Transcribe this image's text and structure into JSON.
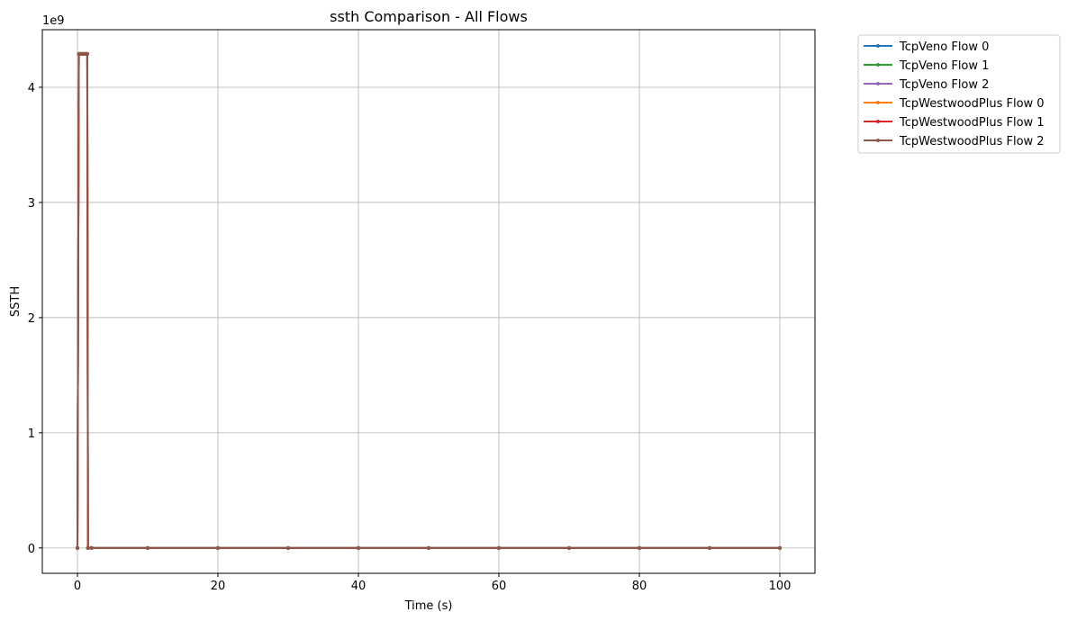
{
  "chart_data": {
    "type": "line",
    "title": "ssth Comparison - All Flows",
    "xlabel": "Time (s)",
    "ylabel": "SSTH",
    "y_scale_label": "1e9",
    "xlim": [
      -5,
      105
    ],
    "ylim": [
      -0.22,
      4.5
    ],
    "x_ticks": [
      0,
      20,
      40,
      60,
      80,
      100
    ],
    "x_tick_labels": [
      "0",
      "20",
      "40",
      "60",
      "80",
      "100"
    ],
    "y_ticks": [
      0,
      1,
      2,
      3,
      4
    ],
    "y_tick_labels": [
      "0",
      "1",
      "2",
      "3",
      "4"
    ],
    "grid": true,
    "legend_position": "outside-right",
    "series": [
      {
        "name": "TcpVeno Flow 0",
        "color": "#1f77b4",
        "x": [
          0,
          0.2,
          0.4,
          0.6,
          0.8,
          1.0,
          1.2,
          1.4,
          1.5,
          2,
          10,
          20,
          30,
          40,
          50,
          60,
          70,
          80,
          90,
          100
        ],
        "y": [
          0,
          4.29,
          4.29,
          4.29,
          4.29,
          4.29,
          4.29,
          4.29,
          0,
          0,
          0,
          0,
          0,
          0,
          0,
          0,
          0,
          0,
          0,
          0
        ]
      },
      {
        "name": "TcpVeno Flow 1",
        "color": "#2ca02c",
        "x": [
          0,
          0.2,
          0.4,
          0.6,
          0.8,
          1.0,
          1.2,
          1.4,
          1.5,
          2,
          10,
          20,
          30,
          40,
          50,
          60,
          70,
          80,
          90,
          100
        ],
        "y": [
          0,
          4.29,
          4.29,
          4.29,
          4.29,
          4.29,
          4.29,
          4.29,
          0,
          0,
          0,
          0,
          0,
          0,
          0,
          0,
          0,
          0,
          0,
          0
        ]
      },
      {
        "name": "TcpVeno Flow 2",
        "color": "#9467bd",
        "x": [
          0,
          0.2,
          0.4,
          0.6,
          0.8,
          1.0,
          1.2,
          1.4,
          1.5,
          2,
          10,
          20,
          30,
          40,
          50,
          60,
          70,
          80,
          90,
          100
        ],
        "y": [
          0,
          4.29,
          4.29,
          4.29,
          4.29,
          4.29,
          4.29,
          4.29,
          0,
          0,
          0,
          0,
          0,
          0,
          0,
          0,
          0,
          0,
          0,
          0
        ]
      },
      {
        "name": "TcpWestwoodPlus Flow 0",
        "color": "#ff7f0e",
        "x": [
          0,
          0.2,
          0.4,
          0.6,
          0.8,
          1.0,
          1.2,
          1.4,
          1.5,
          2,
          10,
          20,
          30,
          40,
          50,
          60,
          70,
          80,
          90,
          100
        ],
        "y": [
          0,
          4.29,
          4.29,
          4.29,
          4.29,
          4.29,
          4.29,
          4.29,
          0,
          0,
          0,
          0,
          0,
          0,
          0,
          0,
          0,
          0,
          0,
          0
        ]
      },
      {
        "name": "TcpWestwoodPlus Flow 1",
        "color": "#d62728",
        "x": [
          0,
          0.2,
          0.4,
          0.6,
          0.8,
          1.0,
          1.2,
          1.4,
          1.5,
          2,
          10,
          20,
          30,
          40,
          50,
          60,
          70,
          80,
          90,
          100
        ],
        "y": [
          0,
          4.29,
          4.29,
          4.29,
          4.29,
          4.29,
          4.29,
          4.29,
          0,
          0,
          0,
          0,
          0,
          0,
          0,
          0,
          0,
          0,
          0,
          0
        ]
      },
      {
        "name": "TcpWestwoodPlus Flow 2",
        "color": "#8c564b",
        "x": [
          0,
          0.2,
          0.4,
          0.6,
          0.8,
          1.0,
          1.2,
          1.4,
          1.5,
          2,
          10,
          20,
          30,
          40,
          50,
          60,
          70,
          80,
          90,
          100
        ],
        "y": [
          0,
          4.29,
          4.29,
          4.29,
          4.29,
          4.29,
          4.29,
          4.29,
          0,
          0,
          0,
          0,
          0,
          0,
          0,
          0,
          0,
          0,
          0,
          0
        ]
      }
    ]
  }
}
